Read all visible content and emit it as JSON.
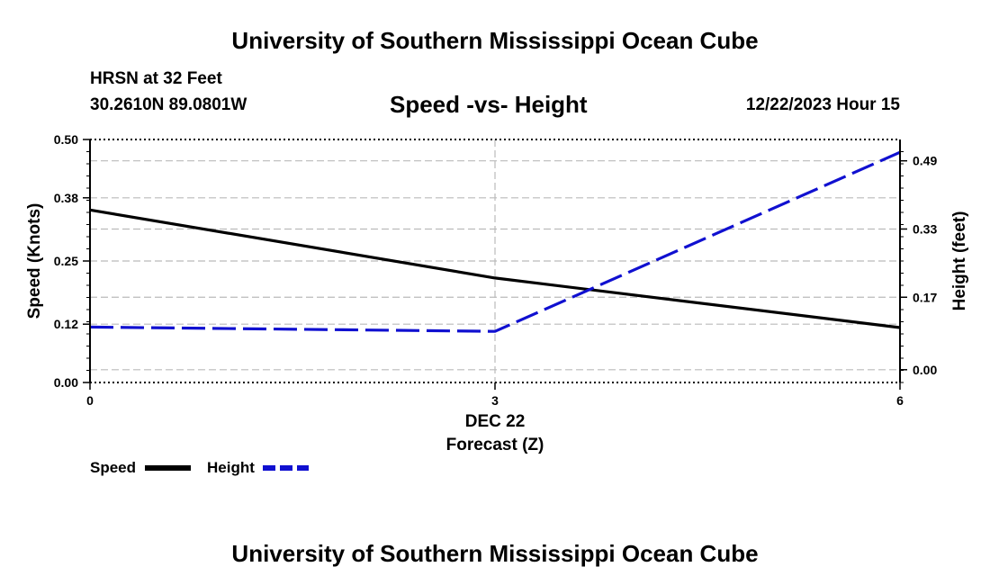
{
  "header": {
    "title": "University of Southern Mississippi Ocean Cube",
    "station_name": "HRSN at 32 Feet",
    "station_coords": "30.2610N  89.0801W",
    "chart_title": "Speed -vs- Height",
    "date": "12/22/2023 Hour 15"
  },
  "footer": {
    "title": "University of Southern Mississippi Ocean Cube"
  },
  "colors": {
    "speed": "#000000",
    "height": "#1010d0",
    "grid": "#bbbbbb"
  },
  "chart_data": {
    "type": "line",
    "title": "Speed -vs- Height",
    "xlabel": "Forecast (Z)",
    "x_date_label": "DEC 22",
    "ylabel": "Speed (Knots)",
    "y2label": "Height (feet)",
    "x": [
      0,
      3,
      6
    ],
    "xlim": [
      0,
      6
    ],
    "x_ticks": [
      0,
      3,
      6
    ],
    "x_tick_labels": [
      "0",
      "3",
      "6"
    ],
    "ylim": [
      0,
      0.5
    ],
    "y_ticks": [
      0,
      0.12,
      0.25,
      0.38,
      0.5
    ],
    "y_tick_labels": [
      "0.00",
      "0.12",
      "0.25",
      "0.38",
      "0.50"
    ],
    "y2lim": [
      -0.03,
      0.54
    ],
    "y2_ticks": [
      0,
      0.17,
      0.33,
      0.49
    ],
    "y2_tick_labels": [
      "0.00",
      "0.17",
      "0.33",
      "0.49"
    ],
    "grid": true,
    "series": [
      {
        "name": "Speed",
        "axis": "left",
        "style": "solid",
        "values": [
          0.355,
          0.215,
          0.113
        ]
      },
      {
        "name": "Height",
        "axis": "right",
        "style": "dashed",
        "values": [
          0.1,
          0.09,
          0.51
        ]
      }
    ],
    "legend": {
      "placement": "bottom-left",
      "entries": [
        "Speed",
        "Height"
      ]
    }
  }
}
